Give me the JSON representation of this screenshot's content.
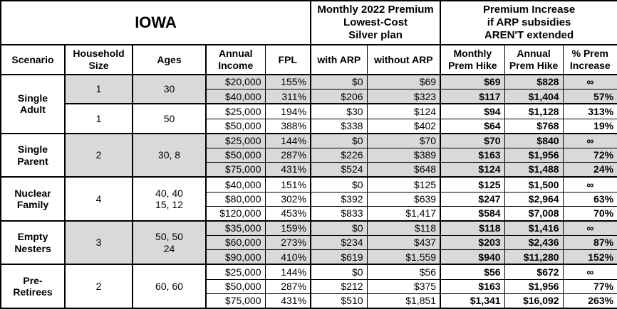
{
  "header": {
    "title": "IOWA",
    "premium_group_header": "Monthly 2022 Premium\nLowest-Cost\nSilver plan",
    "increase_group_header": "Premium Increase\nif ARP subsidies\nAREN'T extended",
    "columns": [
      "Scenario",
      "Household\nSize",
      "Ages",
      "Annual\nIncome",
      "FPL",
      "with ARP",
      "without ARP",
      "Monthly\nPrem Hike",
      "Annual\nPrem Hike",
      "% Prem\nIncrease"
    ]
  },
  "colors": {
    "shaded_row": "#d9d9d9",
    "border": "#000000",
    "background": "#ffffff",
    "text": "#000000"
  },
  "chart_data": {
    "type": "table",
    "title": "IOWA",
    "columns": [
      "Scenario",
      "Household Size",
      "Ages",
      "Annual Income",
      "FPL",
      "with ARP",
      "without ARP",
      "Monthly Prem Hike",
      "Annual Prem Hike",
      "% Prem Increase"
    ],
    "column_groups": [
      "Monthly 2022 Premium Lowest-Cost Silver plan",
      "Premium Increase if ARP subsidies AREN'T extended"
    ],
    "groups": [
      {
        "scenario": "Single Adult",
        "subgroups": [
          {
            "household_size": "1",
            "ages": "30",
            "shaded": true,
            "rows": [
              [
                "$20,000",
                "155%",
                "$0",
                "$69",
                "$69",
                "$828",
                "∞"
              ],
              [
                "$40,000",
                "311%",
                "$206",
                "$323",
                "$117",
                "$1,404",
                "57%"
              ]
            ]
          },
          {
            "household_size": "1",
            "ages": "50",
            "shaded": false,
            "rows": [
              [
                "$25,000",
                "194%",
                "$30",
                "$124",
                "$94",
                "$1,128",
                "313%"
              ],
              [
                "$50,000",
                "388%",
                "$338",
                "$402",
                "$64",
                "$768",
                "19%"
              ]
            ]
          }
        ]
      },
      {
        "scenario": "Single Parent",
        "subgroups": [
          {
            "household_size": "2",
            "ages": "30, 8",
            "shaded": true,
            "rows": [
              [
                "$25,000",
                "144%",
                "$0",
                "$70",
                "$70",
                "$840",
                "∞"
              ],
              [
                "$50,000",
                "287%",
                "$226",
                "$389",
                "$163",
                "$1,956",
                "72%"
              ],
              [
                "$75,000",
                "431%",
                "$524",
                "$648",
                "$124",
                "$1,488",
                "24%"
              ]
            ]
          }
        ]
      },
      {
        "scenario": "Nuclear Family",
        "subgroups": [
          {
            "household_size": "4",
            "ages": "40, 40\n15, 12",
            "shaded": false,
            "rows": [
              [
                "$40,000",
                "151%",
                "$0",
                "$125",
                "$125",
                "$1,500",
                "∞"
              ],
              [
                "$80,000",
                "302%",
                "$392",
                "$639",
                "$247",
                "$2,964",
                "63%"
              ],
              [
                "$120,000",
                "453%",
                "$833",
                "$1,417",
                "$584",
                "$7,008",
                "70%"
              ]
            ]
          }
        ]
      },
      {
        "scenario": "Empty Nesters",
        "subgroups": [
          {
            "household_size": "3",
            "ages": "50, 50\n24",
            "shaded": true,
            "rows": [
              [
                "$35,000",
                "159%",
                "$0",
                "$118",
                "$118",
                "$1,416",
                "∞"
              ],
              [
                "$60,000",
                "273%",
                "$234",
                "$437",
                "$203",
                "$2,436",
                "87%"
              ],
              [
                "$90,000",
                "410%",
                "$619",
                "$1,559",
                "$940",
                "$11,280",
                "152%"
              ]
            ]
          }
        ]
      },
      {
        "scenario": "Pre-Retirees",
        "subgroups": [
          {
            "household_size": "2",
            "ages": "60, 60",
            "shaded": false,
            "rows": [
              [
                "$25,000",
                "144%",
                "$0",
                "$56",
                "$56",
                "$672",
                "∞"
              ],
              [
                "$50,000",
                "287%",
                "$212",
                "$375",
                "$163",
                "$1,956",
                "77%"
              ],
              [
                "$75,000",
                "431%",
                "$510",
                "$1,851",
                "$1,341",
                "$16,092",
                "263%"
              ]
            ]
          }
        ]
      }
    ]
  }
}
